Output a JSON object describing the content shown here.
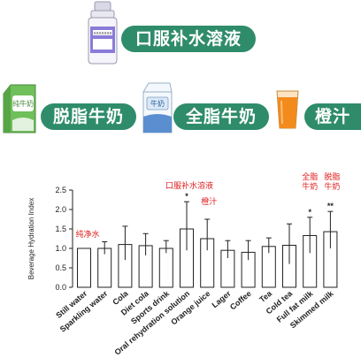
{
  "labels": {
    "oral_rehydration": "口服补水溶液",
    "skimmed_milk": "脱脂牛奶",
    "full_fat_milk": "全脂牛奶",
    "orange_juice": "橙汁"
  },
  "packaging": {
    "ors_bottle_label": "XXXXXXX",
    "skim_carton_text": "纯牛奶",
    "full_carton_text": "牛奶"
  },
  "colors": {
    "pill": "#2f8c6b",
    "annotation": "#e02020",
    "ors_bottle": "#8b7bd9",
    "juice": "#f28a1c"
  },
  "icons": [
    "medicine-bottle-icon",
    "milk-carton-icon",
    "milk-carton-icon",
    "juice-glass-icon"
  ],
  "chart_data": {
    "type": "bar",
    "ylabel": "Beverage Hydration Index",
    "ylim": [
      0,
      2.5
    ],
    "yticks": [
      "0.0",
      "0.5",
      "1.0",
      "1.5",
      "2.0",
      "2.5"
    ],
    "categories": [
      "Still water",
      "Sparkling water",
      "Cola",
      "Diet cola",
      "Sports drink",
      "Oral rehydration solution",
      "Orange juice",
      "Lager",
      "Coffee",
      "Tea",
      "Cold tea",
      "Full fat milk",
      "Skimmed milk"
    ],
    "values": [
      1.0,
      1.0,
      1.1,
      1.07,
      1.0,
      1.5,
      1.25,
      0.95,
      0.9,
      1.05,
      1.08,
      1.33,
      1.43
    ],
    "error_upper": [
      1.0,
      1.17,
      1.57,
      1.38,
      1.2,
      2.2,
      1.75,
      1.2,
      1.2,
      1.27,
      1.63,
      1.8,
      1.95
    ],
    "error_lower": [
      1.0,
      0.85,
      0.7,
      0.82,
      0.88,
      0.95,
      0.95,
      0.75,
      0.7,
      0.88,
      0.6,
      0.88,
      1.0
    ],
    "significance": [
      "",
      "",
      "",
      "",
      "",
      "*",
      "",
      "",
      "",
      "",
      "",
      "*",
      "**"
    ],
    "annotations": [
      {
        "index": 0,
        "text": "纯净水"
      },
      {
        "index": 5,
        "text": "口服补水溶液"
      },
      {
        "index": 6,
        "text": "橙汁"
      },
      {
        "index": 11,
        "text": "全脂牛奶"
      },
      {
        "index": 12,
        "text": "脱脂牛奶"
      }
    ],
    "grid": false
  }
}
